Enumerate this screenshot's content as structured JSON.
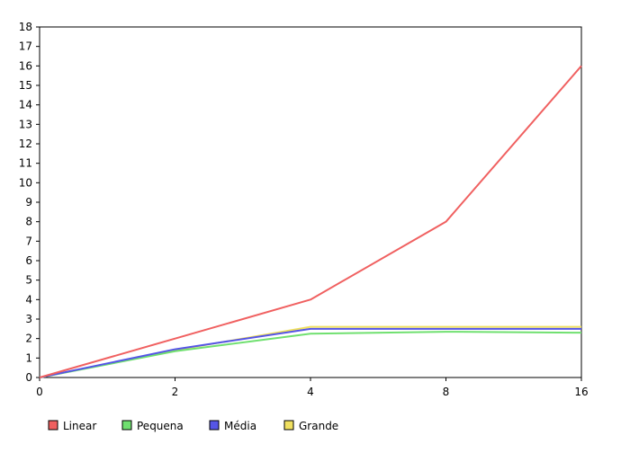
{
  "chart_data": {
    "type": "line",
    "x": [
      0,
      2,
      4,
      8,
      16
    ],
    "x_tick_labels": [
      "0",
      "2",
      "4",
      "8",
      "16"
    ],
    "x_scale": "categorical-evenly-spaced",
    "ylim": [
      0,
      18
    ],
    "y_ticks": [
      0,
      1,
      2,
      3,
      4,
      5,
      6,
      7,
      8,
      9,
      10,
      11,
      12,
      13,
      14,
      15,
      16,
      17,
      18
    ],
    "grid": false,
    "legend_position": "bottom-left",
    "series": [
      {
        "name": "Linear",
        "color": "#f06060",
        "values": [
          0,
          2,
          4,
          8,
          16
        ]
      },
      {
        "name": "Pequena",
        "color": "#70e070",
        "values": [
          0,
          1.35,
          2.25,
          2.35,
          2.3
        ]
      },
      {
        "name": "Média",
        "color": "#5555e6",
        "values": [
          0,
          1.45,
          2.5,
          2.5,
          2.5
        ]
      },
      {
        "name": "Grande",
        "color": "#f0e060",
        "values": [
          0,
          1.4,
          2.6,
          2.6,
          2.6
        ]
      }
    ]
  }
}
